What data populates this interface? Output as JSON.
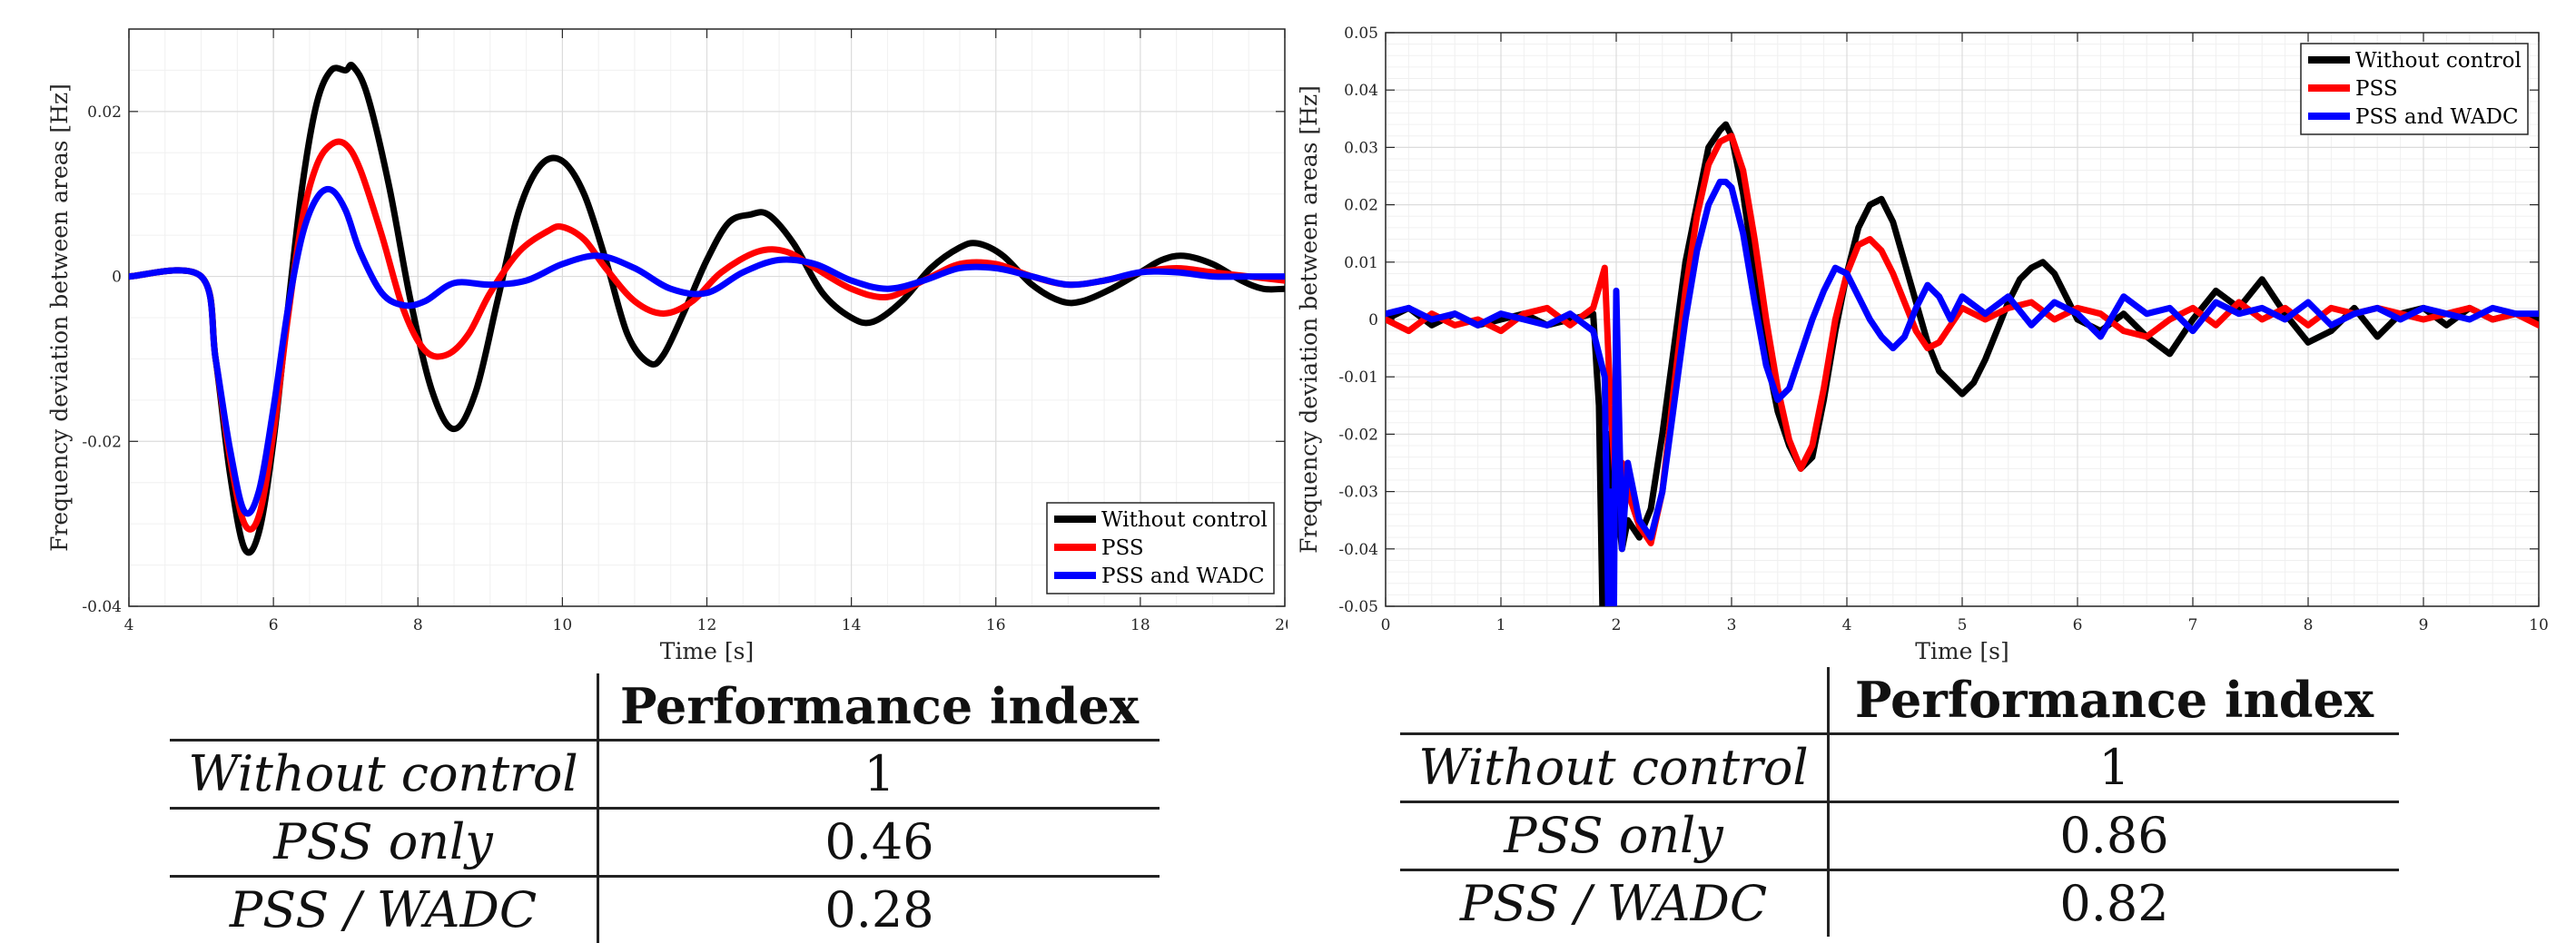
{
  "chart_data": [
    {
      "type": "line",
      "xlabel": "Time [s]",
      "ylabel": "Frequency deviation between areas [Hz]",
      "xlim": [
        4,
        20
      ],
      "ylim": [
        -0.04,
        0.03
      ],
      "xticks": [
        4,
        6,
        8,
        10,
        12,
        14,
        16,
        18,
        20
      ],
      "xtick_labels": [
        "4",
        "6",
        "8",
        "10",
        "12",
        "14",
        "16",
        "18",
        "20"
      ],
      "yticks": [
        -0.04,
        -0.02,
        0,
        0.02
      ],
      "ytick_labels": [
        "-0.04",
        "-0.02",
        "0",
        "0.02"
      ],
      "grid": true,
      "legend_position": "bottom-right",
      "series": [
        {
          "name": "Without control",
          "color": "#000000",
          "x": [
            4,
            5,
            5.2,
            5.4,
            5.6,
            5.8,
            6.0,
            6.2,
            6.4,
            6.6,
            6.8,
            7.0,
            7.1,
            7.3,
            7.6,
            7.9,
            8.2,
            8.5,
            8.8,
            9.1,
            9.4,
            9.7,
            10.0,
            10.3,
            10.6,
            10.9,
            11.2,
            11.4,
            11.7,
            12.0,
            12.3,
            12.6,
            12.85,
            13.2,
            13.6,
            14.0,
            14.3,
            14.7,
            15.1,
            15.5,
            15.75,
            16.1,
            16.5,
            16.9,
            17.2,
            17.6,
            18.0,
            18.3,
            18.6,
            19.0,
            19.4,
            19.7,
            20.0
          ],
          "y": [
            0,
            0,
            -0.01,
            -0.024,
            -0.033,
            -0.031,
            -0.02,
            -0.004,
            0.011,
            0.021,
            0.025,
            0.025,
            0.0255,
            0.022,
            0.011,
            -0.003,
            -0.014,
            -0.0185,
            -0.014,
            -0.003,
            0.008,
            0.0135,
            0.014,
            0.01,
            0.002,
            -0.007,
            -0.0105,
            -0.0095,
            -0.004,
            0.002,
            0.0065,
            0.0075,
            0.0075,
            0.004,
            -0.002,
            -0.005,
            -0.0055,
            -0.003,
            0.001,
            0.0035,
            0.004,
            0.0025,
            -0.001,
            -0.003,
            -0.003,
            -0.0015,
            0.0005,
            0.002,
            0.0025,
            0.0015,
            -0.0005,
            -0.0015,
            -0.0015
          ]
        },
        {
          "name": "PSS",
          "color": "#ff0000",
          "x": [
            4,
            5,
            5.2,
            5.4,
            5.6,
            5.8,
            6.0,
            6.2,
            6.4,
            6.6,
            6.8,
            7.0,
            7.2,
            7.5,
            7.8,
            8.1,
            8.4,
            8.7,
            9.0,
            9.4,
            9.8,
            10.0,
            10.3,
            10.6,
            11.0,
            11.4,
            11.8,
            12.2,
            12.7,
            13.1,
            13.5,
            14.0,
            14.5,
            15.0,
            15.5,
            16.0,
            16.5,
            17.0,
            17.5,
            18.0,
            18.5,
            19.0,
            19.5,
            20.0
          ],
          "y": [
            0,
            0,
            -0.01,
            -0.022,
            -0.03,
            -0.029,
            -0.019,
            -0.005,
            0.007,
            0.0135,
            0.016,
            0.016,
            0.013,
            0.005,
            -0.004,
            -0.009,
            -0.0095,
            -0.007,
            -0.002,
            0.003,
            0.0055,
            0.006,
            0.0045,
            0.001,
            -0.003,
            -0.0045,
            -0.003,
            0.0005,
            0.003,
            0.003,
            0.001,
            -0.0015,
            -0.0025,
            -0.0005,
            0.0015,
            0.0015,
            0.0,
            -0.001,
            -0.0005,
            0.0005,
            0.001,
            0.0005,
            0.0,
            -0.0005
          ]
        },
        {
          "name": "PSS and WADC",
          "color": "#0000ff",
          "x": [
            4,
            5,
            5.2,
            5.4,
            5.6,
            5.8,
            6.0,
            6.2,
            6.4,
            6.6,
            6.8,
            7.0,
            7.2,
            7.5,
            7.8,
            8.1,
            8.5,
            9.0,
            9.5,
            10.0,
            10.5,
            11.0,
            11.5,
            12.0,
            12.5,
            13.0,
            13.5,
            14.0,
            14.5,
            15.0,
            15.5,
            16.0,
            16.5,
            17.0,
            17.5,
            18.0,
            18.5,
            19.0,
            19.5,
            20.0
          ],
          "y": [
            0,
            0,
            -0.01,
            -0.021,
            -0.0285,
            -0.026,
            -0.016,
            -0.004,
            0.005,
            0.0095,
            0.0105,
            0.008,
            0.003,
            -0.002,
            -0.0035,
            -0.003,
            -0.0008,
            -0.001,
            -0.0005,
            0.0015,
            0.0025,
            0.001,
            -0.0015,
            -0.002,
            0.0005,
            0.002,
            0.0015,
            -0.0005,
            -0.0015,
            -0.0005,
            0.001,
            0.001,
            0.0,
            -0.001,
            -0.0005,
            0.0005,
            0.0005,
            0.0,
            0.0,
            0.0
          ]
        }
      ]
    },
    {
      "type": "line",
      "xlabel": "Time [s]",
      "ylabel": "Frequency deviation between areas [Hz]",
      "xlim": [
        0,
        10
      ],
      "ylim": [
        -0.05,
        0.05
      ],
      "xticks": [
        0,
        1,
        2,
        3,
        4,
        5,
        6,
        7,
        8,
        9,
        10
      ],
      "xtick_labels": [
        "0",
        "1",
        "2",
        "3",
        "4",
        "5",
        "6",
        "7",
        "8",
        "9",
        "10"
      ],
      "yticks": [
        -0.05,
        -0.04,
        -0.03,
        -0.02,
        -0.01,
        0,
        0.01,
        0.02,
        0.03,
        0.04,
        0.05
      ],
      "ytick_labels": [
        "-0.05",
        "-0.04",
        "-0.03",
        "-0.02",
        "-0.01",
        "0",
        "0.01",
        "0.02",
        "0.03",
        "0.04",
        "0.05"
      ],
      "grid": true,
      "legend_position": "top-right",
      "series": [
        {
          "name": "Without control",
          "color": "#000000",
          "x": [
            0,
            0.2,
            0.4,
            0.6,
            0.8,
            1.0,
            1.2,
            1.4,
            1.6,
            1.8,
            1.85,
            1.88,
            1.9,
            1.93,
            1.96,
            2.0,
            2.05,
            2.1,
            2.2,
            2.3,
            2.4,
            2.5,
            2.6,
            2.7,
            2.8,
            2.9,
            2.95,
            3.0,
            3.1,
            3.2,
            3.3,
            3.4,
            3.5,
            3.6,
            3.7,
            3.8,
            3.9,
            4.0,
            4.1,
            4.2,
            4.3,
            4.4,
            4.5,
            4.6,
            4.7,
            4.8,
            4.9,
            5.0,
            5.1,
            5.2,
            5.3,
            5.4,
            5.5,
            5.6,
            5.7,
            5.8,
            5.9,
            6.0,
            6.2,
            6.4,
            6.6,
            6.8,
            7.0,
            7.2,
            7.4,
            7.6,
            7.8,
            8.0,
            8.2,
            8.4,
            8.6,
            8.8,
            9.0,
            9.2,
            9.4,
            9.6,
            9.8,
            10.0
          ],
          "y": [
            0.0,
            0.002,
            -0.001,
            0.001,
            -0.001,
            0.0,
            0.001,
            -0.001,
            0.0,
            0.001,
            -0.015,
            -0.05,
            -0.04,
            -0.02,
            -0.045,
            -0.03,
            -0.04,
            -0.035,
            -0.038,
            -0.033,
            -0.02,
            -0.005,
            0.01,
            0.02,
            0.03,
            0.033,
            0.034,
            0.032,
            0.022,
            0.008,
            -0.006,
            -0.016,
            -0.022,
            -0.026,
            -0.024,
            -0.014,
            -0.002,
            0.008,
            0.016,
            0.02,
            0.021,
            0.017,
            0.01,
            0.003,
            -0.004,
            -0.009,
            -0.011,
            -0.013,
            -0.011,
            -0.007,
            -0.002,
            0.003,
            0.007,
            0.009,
            0.01,
            0.008,
            0.004,
            0.0,
            -0.002,
            0.001,
            -0.003,
            -0.006,
            0.0,
            0.005,
            0.002,
            0.007,
            0.001,
            -0.004,
            -0.002,
            0.002,
            -0.003,
            0.001,
            0.002,
            -0.001,
            0.002,
            0.0,
            0.001,
            0.0
          ]
        },
        {
          "name": "PSS",
          "color": "#ff0000",
          "x": [
            0,
            0.2,
            0.4,
            0.6,
            0.8,
            1.0,
            1.2,
            1.4,
            1.6,
            1.8,
            1.9,
            1.95,
            2.0,
            2.05,
            2.1,
            2.2,
            2.3,
            2.4,
            2.5,
            2.6,
            2.7,
            2.8,
            2.9,
            3.0,
            3.1,
            3.2,
            3.3,
            3.4,
            3.5,
            3.6,
            3.7,
            3.8,
            3.9,
            4.0,
            4.1,
            4.2,
            4.3,
            4.4,
            4.5,
            4.6,
            4.7,
            4.8,
            4.9,
            5.0,
            5.2,
            5.4,
            5.6,
            5.8,
            6.0,
            6.2,
            6.4,
            6.6,
            6.8,
            7.0,
            7.2,
            7.4,
            7.6,
            7.8,
            8.0,
            8.2,
            8.4,
            8.6,
            8.8,
            9.0,
            9.2,
            9.4,
            9.6,
            9.8,
            10.0
          ],
          "y": [
            0.0,
            -0.002,
            0.001,
            -0.001,
            0.0,
            -0.002,
            0.001,
            0.002,
            -0.001,
            0.002,
            0.009,
            -0.015,
            -0.03,
            -0.025,
            -0.03,
            -0.036,
            -0.039,
            -0.03,
            -0.012,
            0.005,
            0.018,
            0.027,
            0.031,
            0.032,
            0.026,
            0.014,
            0.0,
            -0.012,
            -0.021,
            -0.026,
            -0.022,
            -0.012,
            0.0,
            0.008,
            0.013,
            0.014,
            0.012,
            0.008,
            0.003,
            -0.002,
            -0.005,
            -0.004,
            -0.001,
            0.002,
            0.0,
            0.002,
            0.003,
            0.0,
            0.002,
            0.001,
            -0.002,
            -0.003,
            0.0,
            0.002,
            -0.001,
            0.003,
            0.0,
            0.002,
            -0.001,
            0.002,
            0.001,
            0.002,
            0.001,
            0.0,
            0.001,
            0.002,
            0.0,
            0.001,
            -0.001
          ]
        },
        {
          "name": "PSS and WADC",
          "color": "#0000ff",
          "x": [
            0,
            0.2,
            0.4,
            0.6,
            0.8,
            1.0,
            1.2,
            1.4,
            1.6,
            1.8,
            1.9,
            1.93,
            1.95,
            1.98,
            2.0,
            2.05,
            2.1,
            2.2,
            2.3,
            2.4,
            2.5,
            2.6,
            2.7,
            2.8,
            2.9,
            2.95,
            3.0,
            3.1,
            3.2,
            3.3,
            3.4,
            3.5,
            3.6,
            3.7,
            3.8,
            3.9,
            4.0,
            4.1,
            4.2,
            4.3,
            4.4,
            4.5,
            4.6,
            4.7,
            4.8,
            4.9,
            5.0,
            5.2,
            5.4,
            5.6,
            5.8,
            6.0,
            6.2,
            6.4,
            6.6,
            6.8,
            7.0,
            7.2,
            7.4,
            7.6,
            7.8,
            8.0,
            8.2,
            8.4,
            8.6,
            8.8,
            9.0,
            9.2,
            9.4,
            9.6,
            9.8,
            10.0
          ],
          "y": [
            0.001,
            0.002,
            0.0,
            0.001,
            -0.001,
            0.001,
            0.0,
            -0.001,
            0.001,
            -0.002,
            -0.01,
            -0.05,
            -0.03,
            -0.05,
            0.005,
            -0.04,
            -0.025,
            -0.035,
            -0.038,
            -0.03,
            -0.015,
            0.0,
            0.012,
            0.02,
            0.024,
            0.024,
            0.023,
            0.015,
            0.003,
            -0.008,
            -0.014,
            -0.012,
            -0.006,
            0.0,
            0.005,
            0.009,
            0.008,
            0.004,
            0.0,
            -0.003,
            -0.005,
            -0.003,
            0.002,
            0.006,
            0.004,
            0.0,
            0.004,
            0.001,
            0.004,
            -0.001,
            0.003,
            0.001,
            -0.003,
            0.004,
            0.001,
            0.002,
            -0.002,
            0.003,
            0.001,
            0.002,
            0.0,
            0.003,
            -0.001,
            0.001,
            0.002,
            0.0,
            0.002,
            0.001,
            0.0,
            0.002,
            0.001,
            0.001
          ]
        }
      ]
    }
  ],
  "tables": [
    {
      "header": "Performance index",
      "rows": [
        {
          "label": "Without control",
          "value": "1"
        },
        {
          "label": "PSS only",
          "value": "0.46"
        },
        {
          "label": "PSS / WADC",
          "value": "0.28"
        }
      ]
    },
    {
      "header": "Performance index",
      "rows": [
        {
          "label": "Without control",
          "value": "1"
        },
        {
          "label": "PSS only",
          "value": "0.86"
        },
        {
          "label": "PSS / WADC",
          "value": "0.82"
        }
      ]
    }
  ]
}
